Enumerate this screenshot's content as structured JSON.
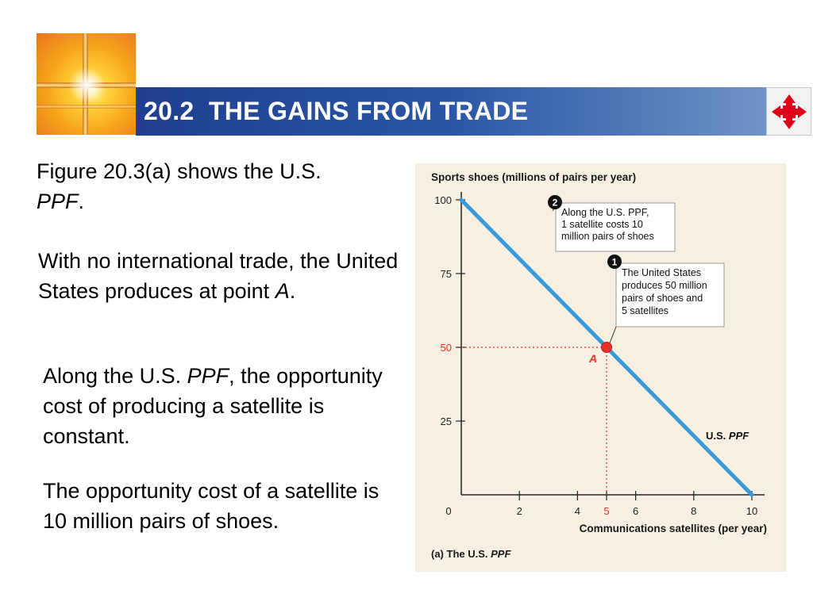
{
  "header": {
    "title": "20.2  THE GAINS FROM TRADE",
    "nav_icon": "four-way-arrows-icon",
    "nav_color": "#e0001a"
  },
  "text": {
    "p1_a": "Figure 20.3(a) shows the U.S. ",
    "p1_italic": "PPF",
    "p1_b": ".",
    "p2_a": "With no international trade, the United States produces at point ",
    "p2_italic": "A",
    "p2_b": ".",
    "p3_a": "Along the U.S. ",
    "p3_italic": "PPF",
    "p3_b": ", the opportunity cost of producing a satellite is constant.",
    "p4": "The opportunity cost of a satellite is 10 million pairs of shoes."
  },
  "chart_data": {
    "type": "line",
    "ylabel": "Sports shoes (millions of pairs per year)",
    "xlabel": "Communications satellites (per year)",
    "caption_a": "(a) The U.S. ",
    "caption_b": "PPF",
    "xlim": [
      0,
      10
    ],
    "ylim": [
      0,
      100
    ],
    "x_ticks": [
      "0",
      "2",
      "4",
      "5",
      "6",
      "8",
      "10"
    ],
    "x_tick_values": [
      0,
      2,
      4,
      5,
      6,
      8,
      10
    ],
    "y_ticks": [
      "25",
      "50",
      "75",
      "100"
    ],
    "y_tick_values": [
      25,
      50,
      75,
      100
    ],
    "series": [
      {
        "name_a": "U.S. ",
        "name_b": "PPF",
        "x": [
          0,
          10
        ],
        "y": [
          100,
          0
        ],
        "color": "#3a9ad9"
      }
    ],
    "point": {
      "label": "A",
      "x": 5,
      "y": 50,
      "color": "#e8302a"
    },
    "highlight_color": "#e8302a",
    "annotations": [
      {
        "number": "2",
        "lines": [
          "Along the U.S. PPF,",
          "1 satellite costs 10",
          "million pairs of shoes"
        ]
      },
      {
        "number": "1",
        "lines": [
          "The United States",
          "produces 50 million",
          "pairs of shoes and",
          "5 satellites"
        ]
      }
    ]
  }
}
